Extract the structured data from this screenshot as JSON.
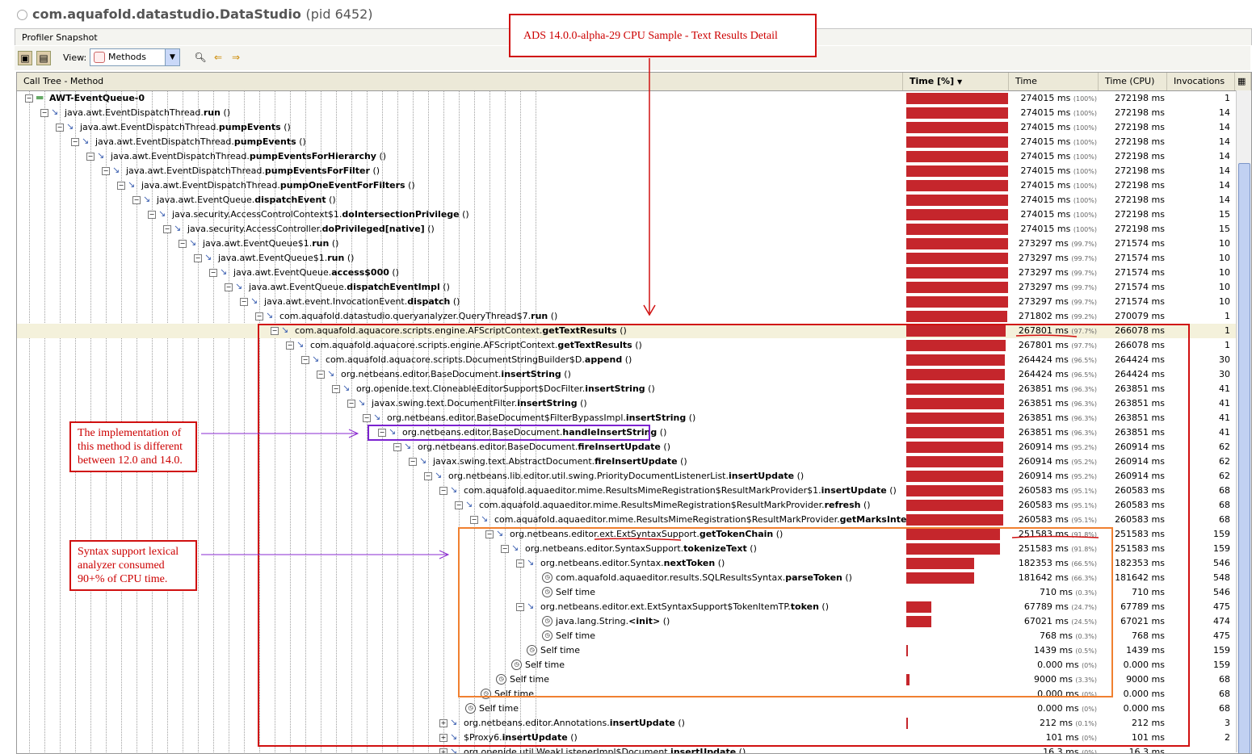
{
  "window": {
    "title": "com.aquafold.datastudio.DataStudio",
    "pid": "(pid 6452)"
  },
  "tab": {
    "label": "Profiler Snapshot"
  },
  "toolbar": {
    "view_label": "View:",
    "view_value": "Methods"
  },
  "columns": [
    "Call Tree - Method",
    "Time [%]",
    "Time",
    "Time (CPU)",
    "Invocations"
  ],
  "rows": [
    {
      "pre": "",
      "name": "AWT-EventQueue-0",
      "suffix": "",
      "depth": 0,
      "icon": "thread",
      "time": "274015 ms",
      "pct": "(100%)",
      "cpu": "272198 ms",
      "inv": "1",
      "bar": 1.0
    },
    {
      "pre": "java.awt.EventDispatchThread.",
      "name": "run",
      "suffix": " ()",
      "depth": 1,
      "icon": "method",
      "time": "274015 ms",
      "pct": "(100%)",
      "cpu": "272198 ms",
      "inv": "14",
      "bar": 1.0
    },
    {
      "pre": "java.awt.EventDispatchThread.",
      "name": "pumpEvents",
      "suffix": " ()",
      "depth": 2,
      "icon": "method",
      "time": "274015 ms",
      "pct": "(100%)",
      "cpu": "272198 ms",
      "inv": "14",
      "bar": 1.0
    },
    {
      "pre": "java.awt.EventDispatchThread.",
      "name": "pumpEvents",
      "suffix": " ()",
      "depth": 3,
      "icon": "method",
      "time": "274015 ms",
      "pct": "(100%)",
      "cpu": "272198 ms",
      "inv": "14",
      "bar": 1.0
    },
    {
      "pre": "java.awt.EventDispatchThread.",
      "name": "pumpEventsForHierarchy",
      "suffix": " ()",
      "depth": 4,
      "icon": "method",
      "time": "274015 ms",
      "pct": "(100%)",
      "cpu": "272198 ms",
      "inv": "14",
      "bar": 1.0
    },
    {
      "pre": "java.awt.EventDispatchThread.",
      "name": "pumpEventsForFilter",
      "suffix": " ()",
      "depth": 5,
      "icon": "method",
      "time": "274015 ms",
      "pct": "(100%)",
      "cpu": "272198 ms",
      "inv": "14",
      "bar": 1.0
    },
    {
      "pre": "java.awt.EventDispatchThread.",
      "name": "pumpOneEventForFilters",
      "suffix": " ()",
      "depth": 6,
      "icon": "method",
      "time": "274015 ms",
      "pct": "(100%)",
      "cpu": "272198 ms",
      "inv": "14",
      "bar": 1.0
    },
    {
      "pre": "java.awt.EventQueue.",
      "name": "dispatchEvent",
      "suffix": " ()",
      "depth": 7,
      "icon": "method",
      "time": "274015 ms",
      "pct": "(100%)",
      "cpu": "272198 ms",
      "inv": "14",
      "bar": 1.0
    },
    {
      "pre": "java.security.AccessControlContext$1.",
      "name": "doIntersectionPrivilege",
      "suffix": " ()",
      "depth": 8,
      "icon": "method",
      "time": "274015 ms",
      "pct": "(100%)",
      "cpu": "272198 ms",
      "inv": "15",
      "bar": 1.0
    },
    {
      "pre": "java.security.AccessController.",
      "name": "doPrivileged[native]",
      "suffix": " ()",
      "depth": 9,
      "icon": "method",
      "time": "274015 ms",
      "pct": "(100%)",
      "cpu": "272198 ms",
      "inv": "15",
      "bar": 1.0
    },
    {
      "pre": "java.awt.EventQueue$1.",
      "name": "run",
      "suffix": " ()",
      "depth": 10,
      "icon": "method",
      "time": "273297 ms",
      "pct": "(99.7%)",
      "cpu": "271574 ms",
      "inv": "10",
      "bar": 0.997
    },
    {
      "pre": "java.awt.EventQueue$1.",
      "name": "run",
      "suffix": " ()",
      "depth": 11,
      "icon": "method",
      "time": "273297 ms",
      "pct": "(99.7%)",
      "cpu": "271574 ms",
      "inv": "10",
      "bar": 0.997
    },
    {
      "pre": "java.awt.EventQueue.",
      "name": "access$000",
      "suffix": " ()",
      "depth": 12,
      "icon": "method",
      "time": "273297 ms",
      "pct": "(99.7%)",
      "cpu": "271574 ms",
      "inv": "10",
      "bar": 0.997
    },
    {
      "pre": "java.awt.EventQueue.",
      "name": "dispatchEventImpl",
      "suffix": " ()",
      "depth": 13,
      "icon": "method",
      "time": "273297 ms",
      "pct": "(99.7%)",
      "cpu": "271574 ms",
      "inv": "10",
      "bar": 0.997
    },
    {
      "pre": "java.awt.event.InvocationEvent.",
      "name": "dispatch",
      "suffix": " ()",
      "depth": 14,
      "icon": "method",
      "time": "273297 ms",
      "pct": "(99.7%)",
      "cpu": "271574 ms",
      "inv": "10",
      "bar": 0.997
    },
    {
      "pre": "com.aquafold.datastudio.queryanalyzer.QueryThread$7.",
      "name": "run",
      "suffix": " ()",
      "depth": 15,
      "icon": "method",
      "time": "271802 ms",
      "pct": "(99.2%)",
      "cpu": "270079 ms",
      "inv": "1",
      "bar": 0.992
    },
    {
      "pre": "com.aquafold.aquacore.scripts.engine.AFScriptContext.",
      "name": "getTextResults",
      "suffix": " ()",
      "depth": 16,
      "icon": "method",
      "time": "267801 ms",
      "pct": "(97.7%)",
      "cpu": "266078 ms",
      "inv": "1",
      "bar": 0.977,
      "selected": true
    },
    {
      "pre": "com.aquafold.aquacore.scripts.engine.AFScriptContext.",
      "name": "getTextResults",
      "suffix": " ()",
      "depth": 17,
      "icon": "method",
      "time": "267801 ms",
      "pct": "(97.7%)",
      "cpu": "266078 ms",
      "inv": "1",
      "bar": 0.977
    },
    {
      "pre": "com.aquafold.aquacore.scripts.DocumentStringBuilder$D.",
      "name": "append",
      "suffix": " ()",
      "depth": 18,
      "icon": "method",
      "time": "264424 ms",
      "pct": "(96.5%)",
      "cpu": "264424 ms",
      "inv": "30",
      "bar": 0.965
    },
    {
      "pre": "org.netbeans.editor.BaseDocument.",
      "name": "insertString",
      "suffix": " ()",
      "depth": 19,
      "icon": "method",
      "time": "264424 ms",
      "pct": "(96.5%)",
      "cpu": "264424 ms",
      "inv": "30",
      "bar": 0.965
    },
    {
      "pre": "org.openide.text.CloneableEditorSupport$DocFilter.",
      "name": "insertString",
      "suffix": " ()",
      "depth": 20,
      "icon": "method",
      "time": "263851 ms",
      "pct": "(96.3%)",
      "cpu": "263851 ms",
      "inv": "41",
      "bar": 0.963
    },
    {
      "pre": "javax.swing.text.DocumentFilter.",
      "name": "insertString",
      "suffix": " ()",
      "depth": 21,
      "icon": "method",
      "time": "263851 ms",
      "pct": "(96.3%)",
      "cpu": "263851 ms",
      "inv": "41",
      "bar": 0.963
    },
    {
      "pre": "org.netbeans.editor.BaseDocument$FilterBypassImpl.",
      "name": "insertString",
      "suffix": " ()",
      "depth": 22,
      "icon": "method",
      "time": "263851 ms",
      "pct": "(96.3%)",
      "cpu": "263851 ms",
      "inv": "41",
      "bar": 0.963
    },
    {
      "pre": "org.netbeans.editor.BaseDocument.",
      "name": "handleInsertString",
      "suffix": " ()",
      "depth": 23,
      "icon": "method",
      "time": "263851 ms",
      "pct": "(96.3%)",
      "cpu": "263851 ms",
      "inv": "41",
      "bar": 0.963
    },
    {
      "pre": "org.netbeans.editor.BaseDocument.",
      "name": "fireInsertUpdate",
      "suffix": " ()",
      "depth": 24,
      "icon": "method",
      "time": "260914 ms",
      "pct": "(95.2%)",
      "cpu": "260914 ms",
      "inv": "62",
      "bar": 0.952
    },
    {
      "pre": "javax.swing.text.AbstractDocument.",
      "name": "fireInsertUpdate",
      "suffix": " ()",
      "depth": 25,
      "icon": "method",
      "time": "260914 ms",
      "pct": "(95.2%)",
      "cpu": "260914 ms",
      "inv": "62",
      "bar": 0.952
    },
    {
      "pre": "org.netbeans.lib.editor.util.swing.PriorityDocumentListenerList.",
      "name": "insertUpdate",
      "suffix": " ()",
      "depth": 26,
      "icon": "method",
      "time": "260914 ms",
      "pct": "(95.2%)",
      "cpu": "260914 ms",
      "inv": "62",
      "bar": 0.952
    },
    {
      "pre": "com.aquafold.aquaeditor.mime.ResultsMimeRegistration$ResultMarkProvider$1.",
      "name": "insertUpdate",
      "suffix": " ()",
      "depth": 27,
      "icon": "method",
      "time": "260583 ms",
      "pct": "(95.1%)",
      "cpu": "260583 ms",
      "inv": "68",
      "bar": 0.951
    },
    {
      "pre": "com.aquafold.aquaeditor.mime.ResultsMimeRegistration$ResultMarkProvider.",
      "name": "refresh",
      "suffix": " ()",
      "depth": 28,
      "icon": "method",
      "time": "260583 ms",
      "pct": "(95.1%)",
      "cpu": "260583 ms",
      "inv": "68",
      "bar": 0.951
    },
    {
      "pre": "com.aquafold.aquaeditor.mime.ResultsMimeRegistration$ResultMarkProvider.",
      "name": "getMarksInternal",
      "suffix": " ()",
      "depth": 29,
      "icon": "method",
      "time": "260583 ms",
      "pct": "(95.1%)",
      "cpu": "260583 ms",
      "inv": "68",
      "bar": 0.951
    },
    {
      "pre": "org.netbeans.editor.ext.ExtSyntaxSupport.",
      "name": "getTokenChain",
      "suffix": " ()",
      "depth": 30,
      "icon": "method",
      "time": "251583 ms",
      "pct": "(91.8%)",
      "cpu": "251583 ms",
      "inv": "159",
      "bar": 0.918
    },
    {
      "pre": "org.netbeans.editor.SyntaxSupport.",
      "name": "tokenizeText",
      "suffix": " ()",
      "depth": 31,
      "icon": "method",
      "time": "251583 ms",
      "pct": "(91.8%)",
      "cpu": "251583 ms",
      "inv": "159",
      "bar": 0.918
    },
    {
      "pre": "org.netbeans.editor.Syntax.",
      "name": "nextToken",
      "suffix": " ()",
      "depth": 32,
      "icon": "method",
      "time": "182353 ms",
      "pct": "(66.5%)",
      "cpu": "182353 ms",
      "inv": "546",
      "bar": 0.665
    },
    {
      "pre": "com.aquafold.aquaeditor.results.SQLResultsSyntax.",
      "name": "parseToken",
      "suffix": " ()",
      "depth": 33,
      "icon": "clock",
      "time": "181642 ms",
      "pct": "(66.3%)",
      "cpu": "181642 ms",
      "inv": "548",
      "bar": 0.663
    },
    {
      "pre": "",
      "name": "Self time",
      "suffix": "",
      "depth": 33,
      "icon": "clock",
      "self": true,
      "time": "710 ms",
      "pct": "(0.3%)",
      "cpu": "710 ms",
      "inv": "546",
      "bar": 0.0
    },
    {
      "pre": "org.netbeans.editor.ext.ExtSyntaxSupport$TokenItemTP.",
      "name": "token",
      "suffix": " ()",
      "depth": 32,
      "icon": "method",
      "time": "67789 ms",
      "pct": "(24.7%)",
      "cpu": "67789 ms",
      "inv": "475",
      "bar": 0.247
    },
    {
      "pre": "java.lang.String.",
      "name": "<init>",
      "suffix": " ()",
      "depth": 33,
      "icon": "clock",
      "time": "67021 ms",
      "pct": "(24.5%)",
      "cpu": "67021 ms",
      "inv": "474",
      "bar": 0.245
    },
    {
      "pre": "",
      "name": "Self time",
      "suffix": "",
      "depth": 33,
      "icon": "clock",
      "self": true,
      "time": "768 ms",
      "pct": "(0.3%)",
      "cpu": "768 ms",
      "inv": "475",
      "bar": 0.0
    },
    {
      "pre": "",
      "name": "Self time",
      "suffix": "",
      "depth": 32,
      "icon": "clock",
      "self": true,
      "time": "1439 ms",
      "pct": "(0.5%)",
      "cpu": "1439 ms",
      "inv": "159",
      "bar": 0.005
    },
    {
      "pre": "",
      "name": "Self time",
      "suffix": "",
      "depth": 31,
      "icon": "clock",
      "self": true,
      "time": "0.000 ms",
      "pct": "(0%)",
      "cpu": "0.000 ms",
      "inv": "159",
      "bar": 0.0
    },
    {
      "pre": "",
      "name": "Self time",
      "suffix": "",
      "depth": 30,
      "icon": "clock",
      "self": true,
      "time": "9000 ms",
      "pct": "(3.3%)",
      "cpu": "9000 ms",
      "inv": "68",
      "bar": 0.033
    },
    {
      "pre": "",
      "name": "Self time",
      "suffix": "",
      "depth": 29,
      "icon": "clock",
      "self": true,
      "time": "0.000 ms",
      "pct": "(0%)",
      "cpu": "0.000 ms",
      "inv": "68",
      "bar": 0.0
    },
    {
      "pre": "",
      "name": "Self time",
      "suffix": "",
      "depth": 28,
      "icon": "clock",
      "self": true,
      "time": "0.000 ms",
      "pct": "(0%)",
      "cpu": "0.000 ms",
      "inv": "68",
      "bar": 0.0
    },
    {
      "pre": "org.netbeans.editor.Annotations.",
      "name": "insertUpdate",
      "suffix": " ()",
      "depth": 27,
      "icon": "method",
      "plus": true,
      "time": "212 ms",
      "pct": "(0.1%)",
      "cpu": "212 ms",
      "inv": "3",
      "bar": 0.001
    },
    {
      "pre": "$Proxy6.",
      "name": "insertUpdate",
      "suffix": " ()",
      "depth": 27,
      "icon": "method",
      "plus": true,
      "time": "101 ms",
      "pct": "(0%)",
      "cpu": "101 ms",
      "inv": "2",
      "bar": 0.0
    },
    {
      "pre": "org.openide.util.WeakListenerImpl$Document.",
      "name": "insertUpdate",
      "suffix": " ()",
      "depth": 27,
      "icon": "method",
      "plus": true,
      "time": "16.3 ms",
      "pct": "(0%)",
      "cpu": "16.3 ms",
      "inv": "",
      "bar": 0.0
    }
  ],
  "annotations": {
    "title": "ADS 14.0.0-alpha-29 CPU Sample - Text Results Detail",
    "note1": "The implementation of this method is different between 12.0 and 14.0.",
    "note2": "Syntax support lexical analyzer consumed 90+% of CPU time."
  },
  "colors": {
    "bar": "#c5262c",
    "annotation": "#d01010",
    "purple": "#7b22d0",
    "orange": "#f08030"
  }
}
